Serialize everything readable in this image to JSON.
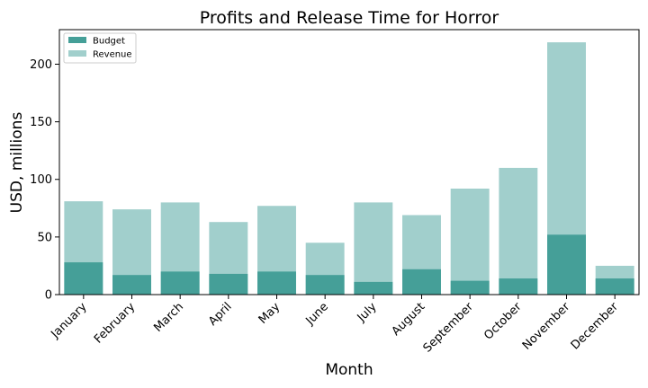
{
  "chart_data": {
    "type": "bar",
    "title": "Profits and Release Time for Horror",
    "xlabel": "Month",
    "ylabel": "USD, millions",
    "categories": [
      "January",
      "February",
      "March",
      "April",
      "May",
      "June",
      "July",
      "August",
      "September",
      "October",
      "November",
      "December"
    ],
    "series": [
      {
        "name": "Revenue",
        "color": "#a1cfcc",
        "values": [
          81,
          74,
          80,
          63,
          77,
          45,
          80,
          69,
          92,
          110,
          219,
          25
        ]
      },
      {
        "name": "Budget",
        "color": "#459f98",
        "values": [
          28,
          17,
          20,
          18,
          20,
          17,
          11,
          22,
          12,
          14,
          52,
          14
        ]
      }
    ],
    "overlay": true,
    "ylim": [
      0,
      230
    ],
    "yticks": [
      0,
      50,
      100,
      150,
      200
    ],
    "legend": {
      "placement": "top-left",
      "entries": [
        "Budget",
        "Revenue"
      ]
    },
    "grid": false
  }
}
